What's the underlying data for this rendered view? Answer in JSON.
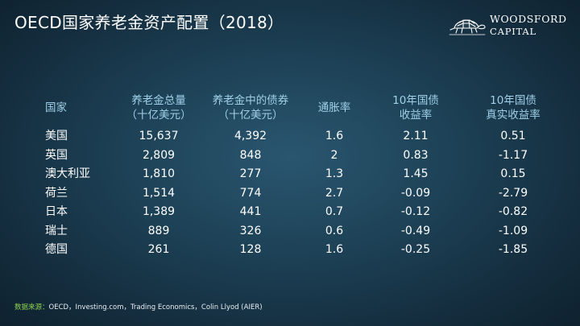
{
  "title": "OECD国家养老金资产配置（2018）",
  "logo": {
    "line1": "WOODSFORD",
    "line2": "CAPITAL",
    "icon": "tortoise-icon"
  },
  "table": {
    "headers": [
      {
        "line1": "国家",
        "line2": ""
      },
      {
        "line1": "养老金总量",
        "line2": "（十亿美元）"
      },
      {
        "line1": "养老金中的债券",
        "line2": "（十亿美元）"
      },
      {
        "line1": "通胀率",
        "line2": ""
      },
      {
        "line1": "10年国债",
        "line2": "收益率"
      },
      {
        "line1": "10年国债",
        "line2": "真实收益率"
      }
    ],
    "rows": [
      {
        "country": "美国",
        "total": "15,637",
        "bonds": "4,392",
        "inflation": "1.6",
        "yield": "2.11",
        "real_yield": "0.51"
      },
      {
        "country": "英国",
        "total": "2,809",
        "bonds": "848",
        "inflation": "2",
        "yield": "0.83",
        "real_yield": "-1.17"
      },
      {
        "country": "澳大利亚",
        "total": "1,810",
        "bonds": "277",
        "inflation": "1.3",
        "yield": "1.45",
        "real_yield": "0.15"
      },
      {
        "country": "荷兰",
        "total": "1,514",
        "bonds": "774",
        "inflation": "2.7",
        "yield": "-0.09",
        "real_yield": "-2.79"
      },
      {
        "country": "日本",
        "total": "1,389",
        "bonds": "441",
        "inflation": "0.7",
        "yield": "-0.12",
        "real_yield": "-0.82"
      },
      {
        "country": "瑞士",
        "total": "889",
        "bonds": "326",
        "inflation": "0.6",
        "yield": "-0.49",
        "real_yield": "-1.09"
      },
      {
        "country": "德国",
        "total": "261",
        "bonds": "128",
        "inflation": "1.6",
        "yield": "-0.25",
        "real_yield": "-1.85"
      }
    ]
  },
  "source": {
    "label": "数据来源：",
    "text": "OECD，Investing.com，Trading Economics，Colin Llyod (AIER)"
  },
  "colors": {
    "header_text": "#9fd0e8",
    "negative": "#e2242a",
    "source_label": "#8fd14f"
  }
}
